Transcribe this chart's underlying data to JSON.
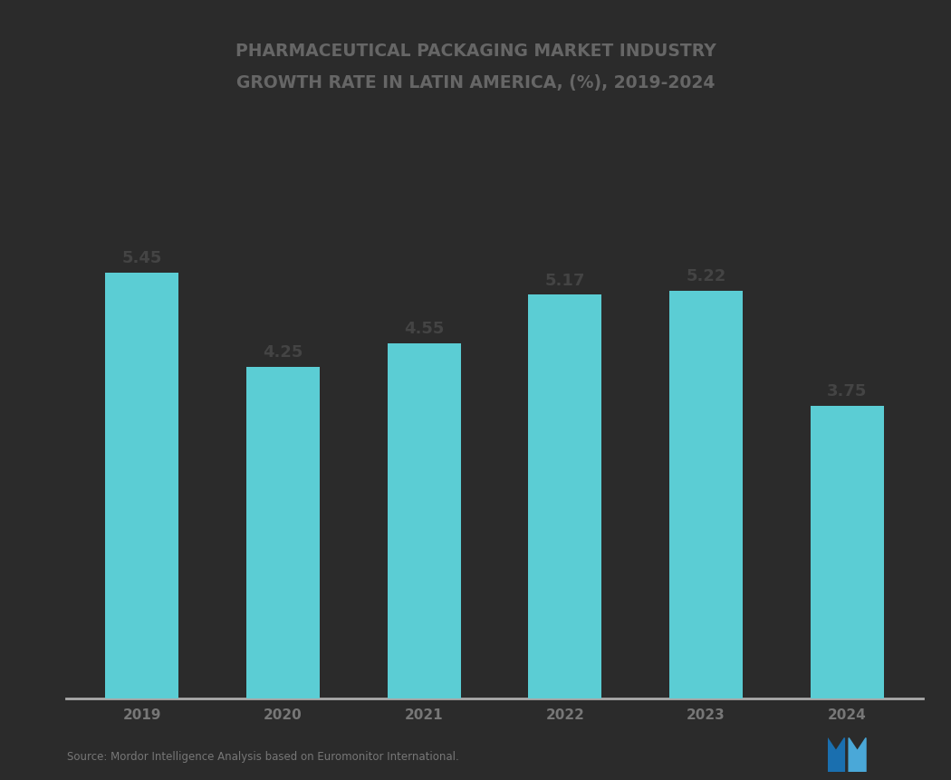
{
  "title_line1": "PHARMACEUTICAL PACKAGING MARKET INDUSTRY",
  "title_line2": "GROWTH RATE IN LATIN AMERICA, (%), 2019-2024",
  "categories": [
    "2019",
    "2020",
    "2021",
    "2022",
    "2023",
    "2024"
  ],
  "values": [
    5.45,
    4.25,
    4.55,
    5.17,
    5.22,
    3.75
  ],
  "bar_color": "#5BCDD4",
  "label_color": "#444444",
  "background_color": "#2b2b2b",
  "plot_bg_color": "#2b2b2b",
  "axis_line_color": "#aaaaaa",
  "tick_color": "#777777",
  "title_color": "#666666",
  "title_fontsize": 13.5,
  "bar_label_fontsize": 13,
  "xtick_fontsize": 11,
  "source_text": "Source: Mordor Intelligence Analysis based on Euromonitor International.",
  "ylim": [
    0,
    7.5
  ]
}
